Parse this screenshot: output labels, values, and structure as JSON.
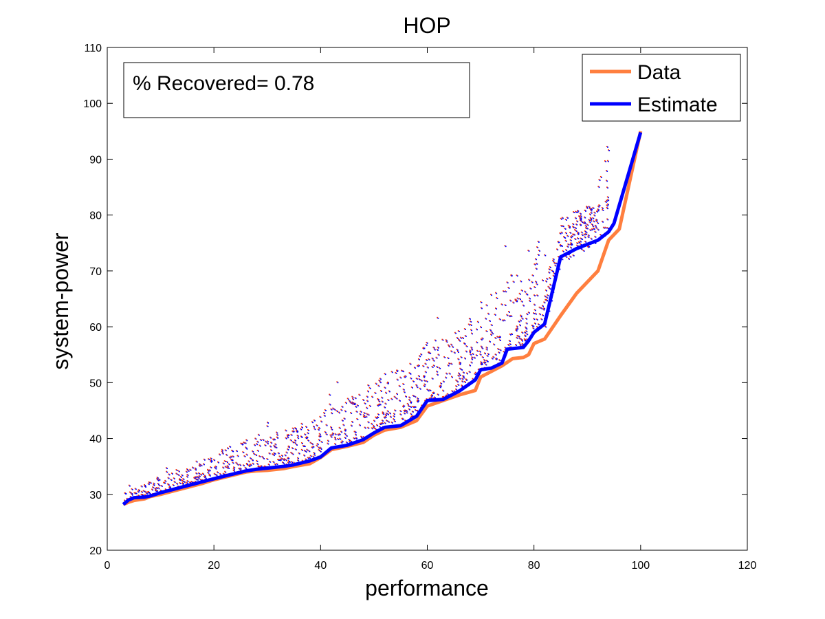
{
  "chart_data": {
    "type": "line",
    "title": "HOP",
    "xlabel": "performance",
    "ylabel": "system-power",
    "xlim": [
      0,
      120
    ],
    "ylim": [
      20,
      110
    ],
    "xticks": [
      0,
      20,
      40,
      60,
      80,
      100,
      120
    ],
    "yticks": [
      20,
      30,
      40,
      50,
      60,
      70,
      80,
      90,
      100,
      110
    ],
    "grid": false,
    "legend_position": "top-right",
    "annotation": "% Recovered= 0.78",
    "series": [
      {
        "name": "Data",
        "color": "#ff7f3f",
        "x": [
          3,
          4,
          5,
          7,
          8,
          10,
          12,
          14,
          16,
          18,
          20,
          23,
          26,
          28,
          30,
          33,
          35,
          38,
          40,
          42,
          45,
          48,
          50,
          52,
          55,
          58,
          60,
          63,
          66,
          69,
          70,
          72,
          74,
          76,
          78,
          79,
          80,
          82,
          85,
          88,
          92,
          94,
          96,
          100
        ],
        "y": [
          28.2,
          28.6,
          28.9,
          29.2,
          29.6,
          30.0,
          30.5,
          31.0,
          31.5,
          32.0,
          32.6,
          33.3,
          34.0,
          34.2,
          34.3,
          34.6,
          35.0,
          35.5,
          36.6,
          38.0,
          38.6,
          39.3,
          40.6,
          41.5,
          42.0,
          43.2,
          45.8,
          46.8,
          47.8,
          48.6,
          51.0,
          52.0,
          53.0,
          54.3,
          54.5,
          55.0,
          57.0,
          57.8,
          62.0,
          66.0,
          70.0,
          75.5,
          77.5,
          95.0
        ]
      },
      {
        "name": "Estimate",
        "color": "#0000ff",
        "x": [
          3,
          4,
          5,
          7,
          8,
          10,
          12,
          14,
          16,
          18,
          20,
          23,
          26,
          28,
          30,
          33,
          35,
          38,
          40,
          42,
          45,
          48,
          50,
          52,
          55,
          58,
          60,
          63,
          66,
          69,
          70,
          72,
          74,
          75,
          78,
          79,
          80,
          82,
          85,
          88,
          92,
          94,
          95,
          100
        ],
        "y": [
          28.2,
          29.0,
          29.4,
          29.5,
          29.7,
          30.3,
          30.8,
          31.3,
          31.8,
          32.3,
          32.8,
          33.5,
          34.2,
          34.5,
          34.7,
          35.0,
          35.3,
          36.0,
          36.7,
          38.3,
          38.8,
          39.8,
          41.0,
          42.0,
          42.3,
          44.0,
          46.8,
          47.0,
          48.5,
          50.5,
          52.3,
          52.6,
          53.5,
          56.0,
          56.3,
          57.5,
          59.0,
          60.5,
          72.5,
          74.0,
          75.5,
          77.0,
          78.5,
          94.8
        ]
      }
    ]
  }
}
